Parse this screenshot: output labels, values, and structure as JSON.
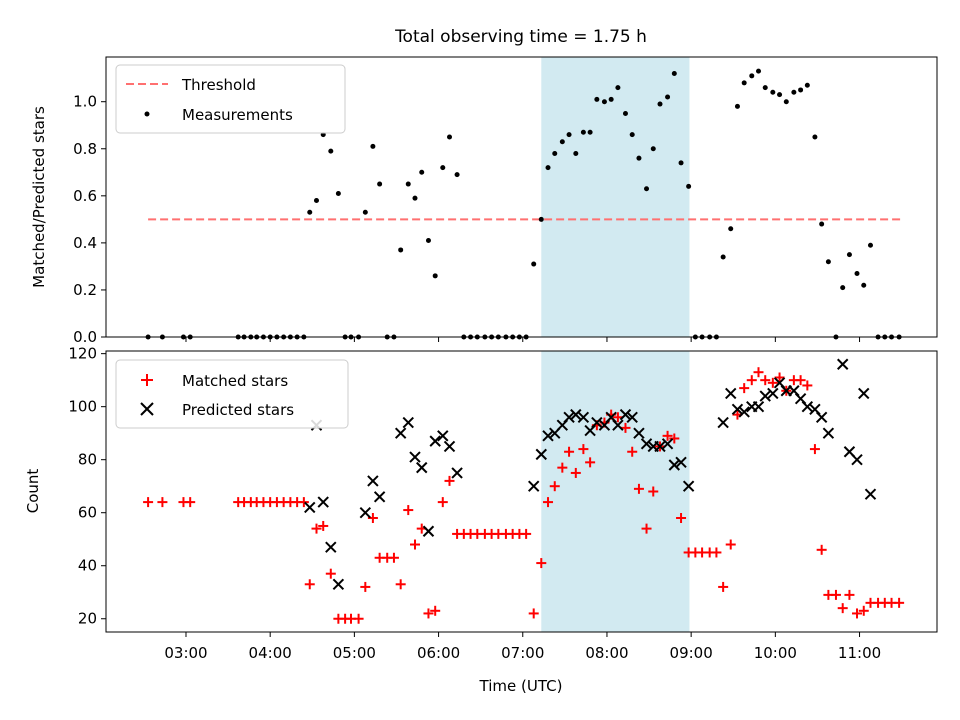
{
  "figure_title": "Total observing time = 1.75 h",
  "chart_data": [
    {
      "type": "scatter",
      "panel": "top",
      "ylabel": "Matched/Predicted stars",
      "ylim": [
        0,
        1.19
      ],
      "yticks": [
        0.0,
        0.2,
        0.4,
        0.6,
        0.8,
        1.0
      ],
      "ytick_labels": [
        "0.0",
        "0.2",
        "0.4",
        "0.6",
        "0.8",
        "1.0"
      ],
      "xlim": [
        2.05,
        11.92
      ],
      "shaded_region": [
        7.22,
        8.98
      ],
      "shade_color": "#add8e6",
      "legend_position": "upper-left",
      "legend": [
        "Threshold",
        "Measurements"
      ],
      "threshold": {
        "name": "Threshold",
        "y": 0.5,
        "x_range": [
          2.55,
          11.5
        ],
        "color": "#ff7070",
        "style": "dashed"
      },
      "measurements": {
        "name": "Measurements",
        "color": "#000000",
        "points": [
          [
            2.55,
            0
          ],
          [
            2.72,
            0
          ],
          [
            2.97,
            0
          ],
          [
            3.05,
            0
          ],
          [
            3.62,
            0
          ],
          [
            3.69,
            0
          ],
          [
            3.77,
            0
          ],
          [
            3.84,
            0
          ],
          [
            3.92,
            0
          ],
          [
            4.0,
            0
          ],
          [
            4.08,
            0
          ],
          [
            4.16,
            0
          ],
          [
            4.24,
            0
          ],
          [
            4.32,
            0
          ],
          [
            4.4,
            0
          ],
          [
            4.47,
            0.53
          ],
          [
            4.55,
            0.58
          ],
          [
            4.63,
            0.86
          ],
          [
            4.72,
            0.79
          ],
          [
            4.81,
            0.61
          ],
          [
            4.89,
            0
          ],
          [
            4.96,
            0
          ],
          [
            5.05,
            0
          ],
          [
            5.13,
            0.53
          ],
          [
            5.22,
            0.81
          ],
          [
            5.3,
            0.65
          ],
          [
            5.39,
            0
          ],
          [
            5.47,
            0
          ],
          [
            5.55,
            0.37
          ],
          [
            5.64,
            0.65
          ],
          [
            5.72,
            0.59
          ],
          [
            5.8,
            0.7
          ],
          [
            5.88,
            0.41
          ],
          [
            5.96,
            0.26
          ],
          [
            6.05,
            0.72
          ],
          [
            6.13,
            0.85
          ],
          [
            6.22,
            0.69
          ],
          [
            6.3,
            0
          ],
          [
            6.38,
            0
          ],
          [
            6.46,
            0
          ],
          [
            6.55,
            0
          ],
          [
            6.63,
            0
          ],
          [
            6.71,
            0
          ],
          [
            6.8,
            0
          ],
          [
            6.88,
            0
          ],
          [
            6.96,
            0
          ],
          [
            7.04,
            0
          ],
          [
            7.13,
            0.31
          ],
          [
            7.22,
            0.5
          ],
          [
            7.3,
            0.72
          ],
          [
            7.38,
            0.78
          ],
          [
            7.47,
            0.83
          ],
          [
            7.55,
            0.86
          ],
          [
            7.63,
            0.78
          ],
          [
            7.72,
            0.87
          ],
          [
            7.8,
            0.87
          ],
          [
            7.88,
            1.01
          ],
          [
            7.97,
            1.0
          ],
          [
            8.05,
            1.01
          ],
          [
            8.13,
            1.06
          ],
          [
            8.22,
            0.95
          ],
          [
            8.3,
            0.86
          ],
          [
            8.38,
            0.76
          ],
          [
            8.47,
            0.63
          ],
          [
            8.55,
            0.8
          ],
          [
            8.63,
            0.99
          ],
          [
            8.72,
            1.02
          ],
          [
            8.8,
            1.12
          ],
          [
            8.88,
            0.74
          ],
          [
            8.97,
            0.64
          ],
          [
            9.05,
            0
          ],
          [
            9.13,
            0
          ],
          [
            9.22,
            0
          ],
          [
            9.3,
            0
          ],
          [
            9.38,
            0.34
          ],
          [
            9.47,
            0.46
          ],
          [
            9.55,
            0.98
          ],
          [
            9.63,
            1.08
          ],
          [
            9.72,
            1.11
          ],
          [
            9.8,
            1.13
          ],
          [
            9.88,
            1.06
          ],
          [
            9.97,
            1.04
          ],
          [
            10.05,
            1.03
          ],
          [
            10.13,
            1.0
          ],
          [
            10.22,
            1.04
          ],
          [
            10.3,
            1.05
          ],
          [
            10.38,
            1.07
          ],
          [
            10.47,
            0.85
          ],
          [
            10.55,
            0.48
          ],
          [
            10.63,
            0.32
          ],
          [
            10.72,
            0
          ],
          [
            10.8,
            0.21
          ],
          [
            10.88,
            0.35
          ],
          [
            10.97,
            0.27
          ],
          [
            11.05,
            0.22
          ],
          [
            11.13,
            0.39
          ],
          [
            11.22,
            0
          ],
          [
            11.3,
            0
          ],
          [
            11.38,
            0
          ],
          [
            11.47,
            0
          ]
        ]
      }
    },
    {
      "type": "scatter",
      "panel": "bottom",
      "xlabel": "Time (UTC)",
      "ylabel": "Count",
      "ylim": [
        15,
        121
      ],
      "yticks": [
        20,
        40,
        60,
        80,
        100,
        120
      ],
      "ytick_labels": [
        "20",
        "40",
        "60",
        "80",
        "100",
        "120"
      ],
      "xlim": [
        2.05,
        11.92
      ],
      "xticks": [
        3,
        4,
        5,
        6,
        7,
        8,
        9,
        10,
        11
      ],
      "xtick_labels": [
        "03:00",
        "04:00",
        "05:00",
        "06:00",
        "07:00",
        "08:00",
        "09:00",
        "10:00",
        "11:00"
      ],
      "shaded_region": [
        7.22,
        8.98
      ],
      "shade_color": "#add8e6",
      "legend_position": "upper-left",
      "legend": [
        "Matched stars",
        "Predicted stars"
      ],
      "matched": {
        "name": "Matched stars",
        "color": "#ff0000",
        "marker": "plus",
        "points": [
          [
            2.55,
            64
          ],
          [
            2.72,
            64
          ],
          [
            2.97,
            64
          ],
          [
            3.05,
            64
          ],
          [
            3.62,
            64
          ],
          [
            3.69,
            64
          ],
          [
            3.77,
            64
          ],
          [
            3.84,
            64
          ],
          [
            3.92,
            64
          ],
          [
            4.0,
            64
          ],
          [
            4.08,
            64
          ],
          [
            4.16,
            64
          ],
          [
            4.24,
            64
          ],
          [
            4.32,
            64
          ],
          [
            4.4,
            64
          ],
          [
            4.47,
            33
          ],
          [
            4.55,
            54
          ],
          [
            4.63,
            55
          ],
          [
            4.72,
            37
          ],
          [
            4.81,
            20
          ],
          [
            4.89,
            20
          ],
          [
            4.96,
            20
          ],
          [
            5.05,
            20
          ],
          [
            5.13,
            32
          ],
          [
            5.22,
            58
          ],
          [
            5.3,
            43
          ],
          [
            5.39,
            43
          ],
          [
            5.47,
            43
          ],
          [
            5.55,
            33
          ],
          [
            5.64,
            61
          ],
          [
            5.72,
            48
          ],
          [
            5.8,
            54
          ],
          [
            5.88,
            22
          ],
          [
            5.96,
            23
          ],
          [
            6.05,
            64
          ],
          [
            6.13,
            72
          ],
          [
            6.22,
            52
          ],
          [
            6.3,
            52
          ],
          [
            6.38,
            52
          ],
          [
            6.46,
            52
          ],
          [
            6.55,
            52
          ],
          [
            6.63,
            52
          ],
          [
            6.71,
            52
          ],
          [
            6.8,
            52
          ],
          [
            6.88,
            52
          ],
          [
            6.96,
            52
          ],
          [
            7.04,
            52
          ],
          [
            7.13,
            22
          ],
          [
            7.22,
            41
          ],
          [
            7.3,
            64
          ],
          [
            7.38,
            70
          ],
          [
            7.47,
            77
          ],
          [
            7.55,
            83
          ],
          [
            7.63,
            75
          ],
          [
            7.72,
            84
          ],
          [
            7.8,
            79
          ],
          [
            7.88,
            93
          ],
          [
            7.97,
            94
          ],
          [
            8.05,
            97
          ],
          [
            8.13,
            96
          ],
          [
            8.22,
            92
          ],
          [
            8.3,
            83
          ],
          [
            8.38,
            69
          ],
          [
            8.47,
            54
          ],
          [
            8.55,
            68
          ],
          [
            8.63,
            85
          ],
          [
            8.72,
            89
          ],
          [
            8.8,
            88
          ],
          [
            8.88,
            58
          ],
          [
            8.97,
            45
          ],
          [
            9.05,
            45
          ],
          [
            9.13,
            45
          ],
          [
            9.22,
            45
          ],
          [
            9.3,
            45
          ],
          [
            9.38,
            32
          ],
          [
            9.47,
            48
          ],
          [
            9.55,
            97
          ],
          [
            9.63,
            107
          ],
          [
            9.72,
            110
          ],
          [
            9.8,
            113
          ],
          [
            9.88,
            110
          ],
          [
            9.97,
            109
          ],
          [
            10.05,
            111
          ],
          [
            10.13,
            106
          ],
          [
            10.22,
            110
          ],
          [
            10.3,
            110
          ],
          [
            10.38,
            108
          ],
          [
            10.47,
            84
          ],
          [
            10.55,
            46
          ],
          [
            10.63,
            29
          ],
          [
            10.72,
            29
          ],
          [
            10.8,
            24
          ],
          [
            10.88,
            29
          ],
          [
            10.97,
            22
          ],
          [
            11.05,
            23
          ],
          [
            11.13,
            26
          ],
          [
            11.22,
            26
          ],
          [
            11.3,
            26
          ],
          [
            11.38,
            26
          ],
          [
            11.47,
            26
          ]
        ]
      },
      "predicted": {
        "name": "Predicted stars",
        "color": "#000000",
        "marker": "x",
        "points": [
          [
            4.47,
            62
          ],
          [
            4.55,
            93
          ],
          [
            4.63,
            64
          ],
          [
            4.72,
            47
          ],
          [
            4.81,
            33
          ],
          [
            5.13,
            60
          ],
          [
            5.22,
            72
          ],
          [
            5.3,
            66
          ],
          [
            5.55,
            90
          ],
          [
            5.64,
            94
          ],
          [
            5.72,
            81
          ],
          [
            5.8,
            77
          ],
          [
            5.88,
            53
          ],
          [
            5.96,
            87
          ],
          [
            6.05,
            89
          ],
          [
            6.13,
            85
          ],
          [
            6.22,
            75
          ],
          [
            7.13,
            70
          ],
          [
            7.22,
            82
          ],
          [
            7.3,
            89
          ],
          [
            7.38,
            90
          ],
          [
            7.47,
            93
          ],
          [
            7.55,
            96
          ],
          [
            7.63,
            97
          ],
          [
            7.72,
            96
          ],
          [
            7.8,
            91
          ],
          [
            7.88,
            94
          ],
          [
            7.97,
            93
          ],
          [
            8.05,
            96
          ],
          [
            8.13,
            93
          ],
          [
            8.22,
            97
          ],
          [
            8.3,
            96
          ],
          [
            8.38,
            90
          ],
          [
            8.47,
            86
          ],
          [
            8.55,
            85
          ],
          [
            8.63,
            85
          ],
          [
            8.72,
            86
          ],
          [
            8.8,
            78
          ],
          [
            8.88,
            79
          ],
          [
            8.97,
            70
          ],
          [
            9.38,
            94
          ],
          [
            9.47,
            105
          ],
          [
            9.55,
            99
          ],
          [
            9.63,
            98
          ],
          [
            9.72,
            100
          ],
          [
            9.8,
            100
          ],
          [
            9.88,
            104
          ],
          [
            9.97,
            105
          ],
          [
            10.05,
            109
          ],
          [
            10.13,
            106
          ],
          [
            10.22,
            106
          ],
          [
            10.3,
            103
          ],
          [
            10.38,
            100
          ],
          [
            10.47,
            99
          ],
          [
            10.55,
            96
          ],
          [
            10.63,
            90
          ],
          [
            10.8,
            116
          ],
          [
            10.88,
            83
          ],
          [
            10.97,
            80
          ],
          [
            11.05,
            105
          ],
          [
            11.13,
            67
          ]
        ]
      }
    }
  ]
}
